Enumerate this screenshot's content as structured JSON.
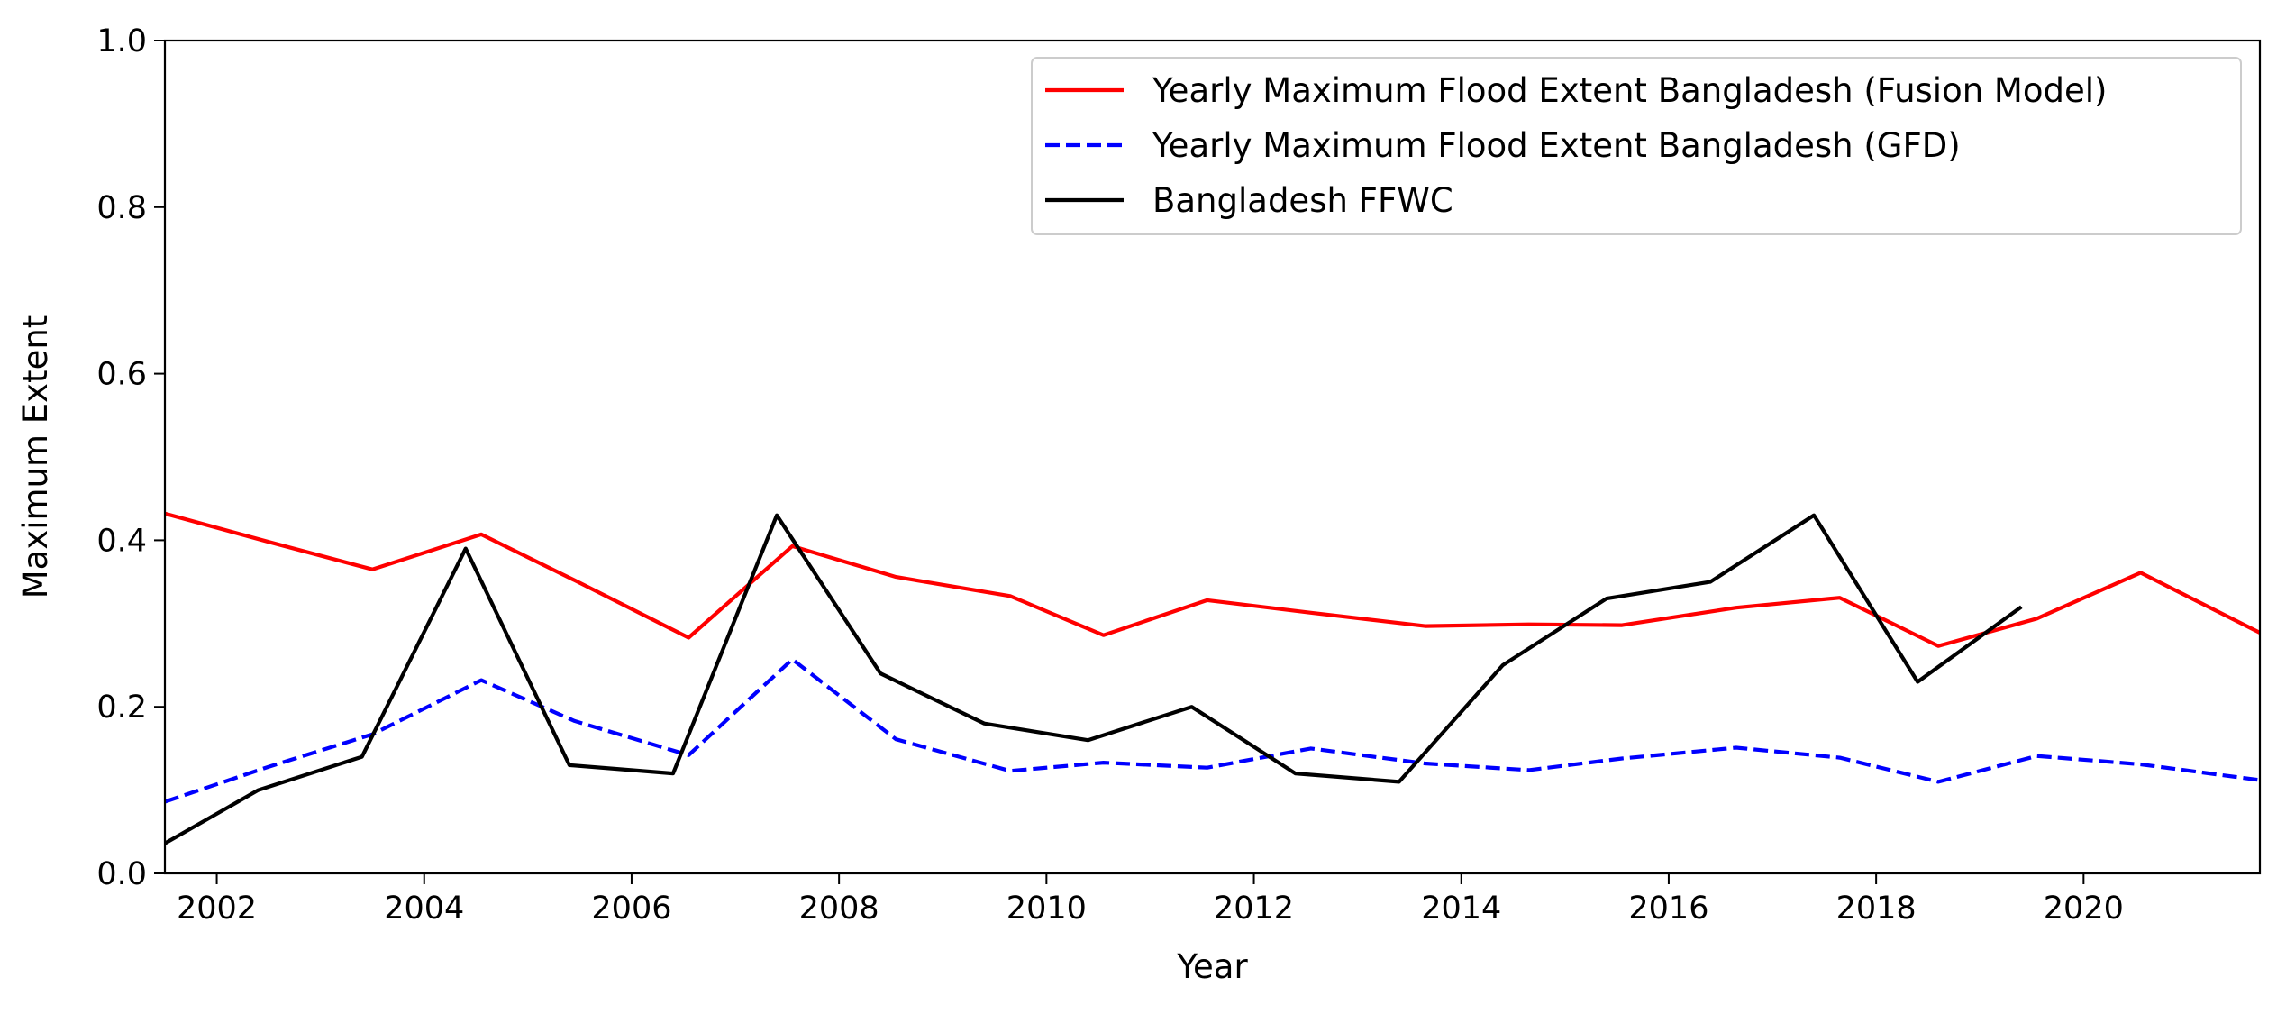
{
  "chart_data": {
    "type": "line",
    "title": "",
    "xlabel": "Year",
    "ylabel": "Maximum Extent",
    "xlim": [
      2001.5,
      2021.7
    ],
    "ylim": [
      0.0,
      1.0
    ],
    "x_ticks": [
      2002,
      2004,
      2006,
      2008,
      2010,
      2012,
      2014,
      2016,
      2018,
      2020
    ],
    "y_ticks": [
      0.0,
      0.2,
      0.4,
      0.6,
      0.8,
      1.0
    ],
    "y_tick_labels": [
      "0.0",
      "0.2",
      "0.4",
      "0.6",
      "0.8",
      "1.0"
    ],
    "grid": false,
    "legend_position": "top-right",
    "series": [
      {
        "name": "Yearly Maximum Flood Extent Bangladesh (Fusion Model)",
        "color": "#ff0000",
        "style": "solid",
        "x": [
          2001.5,
          2002.5,
          2003.5,
          2004.55,
          2005.45,
          2006.55,
          2007.55,
          2008.55,
          2009.65,
          2010.55,
          2011.55,
          2012.55,
          2013.65,
          2014.65,
          2015.55,
          2016.65,
          2017.65,
          2018.6,
          2019.55,
          2020.55,
          2021.7
        ],
        "y": [
          0.432,
          0.398,
          0.365,
          0.407,
          0.352,
          0.283,
          0.393,
          0.356,
          0.333,
          0.286,
          0.328,
          0.313,
          0.297,
          0.299,
          0.298,
          0.319,
          0.331,
          0.273,
          0.306,
          0.361,
          0.289
        ]
      },
      {
        "name": "Yearly Maximum Flood Extent Bangladesh (GFD)",
        "color": "#0000ff",
        "style": "dashed",
        "x": [
          2001.5,
          2002.5,
          2003.5,
          2004.55,
          2005.45,
          2006.55,
          2007.55,
          2008.55,
          2009.65,
          2010.55,
          2011.55,
          2012.55,
          2013.65,
          2014.65,
          2015.55,
          2016.65,
          2017.65,
          2018.6,
          2019.55,
          2020.55,
          2021.7
        ],
        "y": [
          0.086,
          0.128,
          0.167,
          0.232,
          0.183,
          0.142,
          0.257,
          0.161,
          0.123,
          0.133,
          0.127,
          0.15,
          0.132,
          0.124,
          0.138,
          0.151,
          0.139,
          0.11,
          0.141,
          0.131,
          0.112
        ]
      },
      {
        "name": "Bangladesh FFWC",
        "color": "#000000",
        "style": "solid",
        "x": [
          2001.5,
          2002.4,
          2003.4,
          2004.4,
          2005.4,
          2006.4,
          2007.4,
          2008.4,
          2009.4,
          2010.4,
          2011.4,
          2012.4,
          2013.4,
          2014.4,
          2015.4,
          2016.4,
          2017.4,
          2018.4,
          2019.4
        ],
        "y": [
          0.036,
          0.1,
          0.14,
          0.39,
          0.13,
          0.12,
          0.43,
          0.24,
          0.18,
          0.16,
          0.2,
          0.12,
          0.11,
          0.25,
          0.33,
          0.35,
          0.43,
          0.23,
          0.32
        ]
      }
    ]
  }
}
